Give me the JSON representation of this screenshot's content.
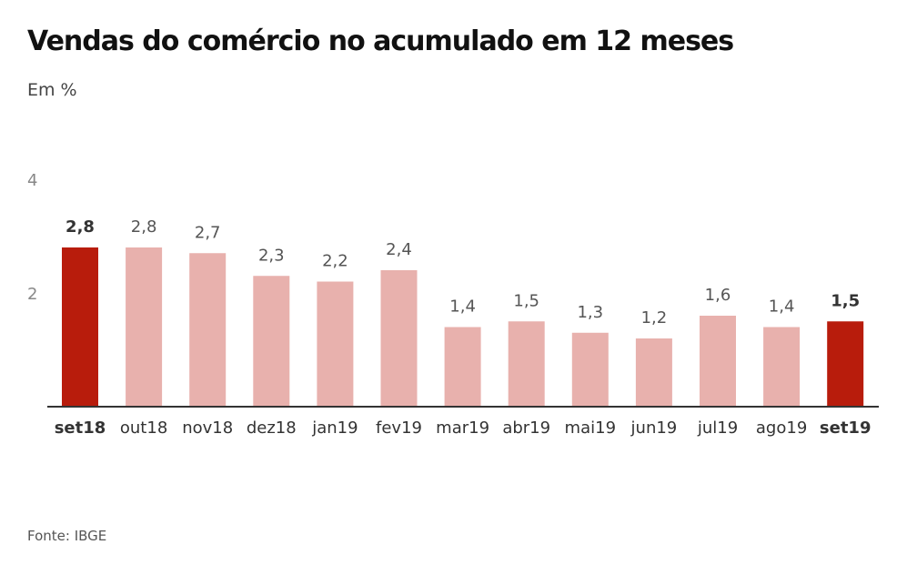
{
  "chart_data": {
    "type": "bar",
    "title": "Vendas do comércio no acumulado em 12 meses",
    "subtitle": "Em %",
    "source": "Fonte: IBGE",
    "categories": [
      "set18",
      "out18",
      "nov18",
      "dez18",
      "jan19",
      "fev19",
      "mar19",
      "abr19",
      "mai19",
      "jun19",
      "jul19",
      "ago19",
      "set19"
    ],
    "values": [
      2.8,
      2.8,
      2.7,
      2.3,
      2.2,
      2.4,
      1.4,
      1.5,
      1.3,
      1.2,
      1.6,
      1.4,
      1.5
    ],
    "value_labels": [
      "2,8",
      "2,8",
      "2,7",
      "2,3",
      "2,2",
      "2,4",
      "1,4",
      "1,5",
      "1,3",
      "1,2",
      "1,6",
      "1,4",
      "1,5"
    ],
    "highlighted": [
      "set18",
      "set19"
    ],
    "yticks": [
      2,
      4
    ],
    "ylim": [
      0,
      4
    ],
    "grid": false,
    "colors": {
      "highlight": "#b81c0c",
      "default": "#e8b1ad",
      "axis": "#333333"
    }
  }
}
